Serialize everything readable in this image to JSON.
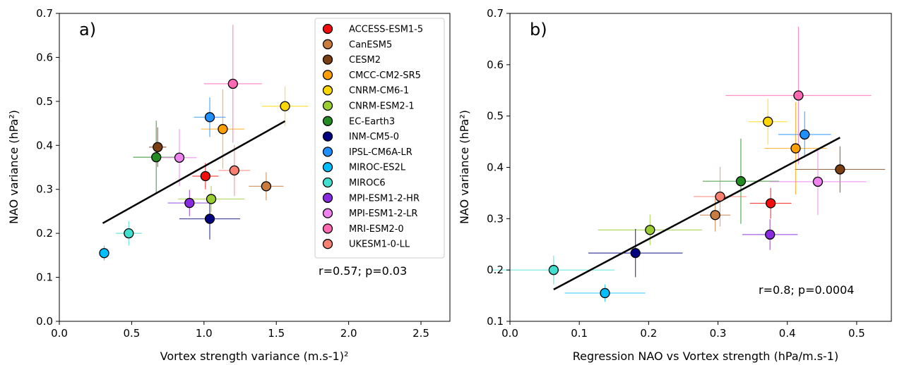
{
  "models": [
    {
      "name": "ACCESS-ESM1-5",
      "color": "#f30e0e"
    },
    {
      "name": "CanESM5",
      "color": "#c87c3e"
    },
    {
      "name": "CESM2",
      "color": "#7a3f12"
    },
    {
      "name": "CMCC-CM2-SR5",
      "color": "#ffa000"
    },
    {
      "name": "CNRM-CM6-1",
      "color": "#ffd700"
    },
    {
      "name": "CNRM-ESM2-1",
      "color": "#9acd32"
    },
    {
      "name": "EC-Earth3",
      "color": "#228b22"
    },
    {
      "name": "INM-CM5-0",
      "color": "#000080"
    },
    {
      "name": "IPSL-CM6A-LR",
      "color": "#1e90ff"
    },
    {
      "name": "MIROC-ES2L",
      "color": "#00bfff"
    },
    {
      "name": "MIROC6",
      "color": "#40e0d0"
    },
    {
      "name": "MPI-ESM1-2-HR",
      "color": "#8a2be2"
    },
    {
      "name": "MPI-ESM1-2-LR",
      "color": "#ee82ee"
    },
    {
      "name": "MRI-ESM2-0",
      "color": "#ff69b4"
    },
    {
      "name": "UKESM1-0-LL",
      "color": "#fa8072"
    }
  ],
  "chart_data": [
    {
      "type": "scatter",
      "panel_label": "a)",
      "title": "",
      "xlabel": "Vortex strength variance (m.s-1)²",
      "ylabel": "NAO variance (hPa²)",
      "xlim": [
        0.0,
        2.7
      ],
      "ylim": [
        0.0,
        0.7
      ],
      "xticks": [
        "0.0",
        "0.5",
        "1.0",
        "1.5",
        "2.0",
        "2.5"
      ],
      "yticks": [
        "0.0",
        "0.1",
        "0.2",
        "0.3",
        "0.4",
        "0.5",
        "0.6",
        "0.7"
      ],
      "grid": false,
      "legend": "top-right",
      "annotation": "r=0.57; p=0.03",
      "regression_line": {
        "x": [
          0.3,
          1.56
        ],
        "y": [
          0.223,
          0.455
        ]
      },
      "points": [
        {
          "model": "ACCESS-ESM1-5",
          "x": 1.01,
          "y": 0.33,
          "xerr": 0.09,
          "yerr": 0.03
        },
        {
          "model": "CanESM5",
          "x": 1.43,
          "y": 0.307,
          "xerr": 0.12,
          "yerr": 0.032
        },
        {
          "model": "CESM2",
          "x": 0.68,
          "y": 0.396,
          "xerr": 0.06,
          "yerr": 0.045
        },
        {
          "model": "CMCC-CM2-SR5",
          "x": 1.13,
          "y": 0.437,
          "xerr": 0.15,
          "yerr": 0.09
        },
        {
          "model": "CNRM-CM6-1",
          "x": 1.56,
          "y": 0.489,
          "xerr": 0.16,
          "yerr": 0.045
        },
        {
          "model": "CNRM-ESM2-1",
          "x": 1.05,
          "y": 0.278,
          "xerr": 0.23,
          "yerr": 0.03
        },
        {
          "model": "EC-Earth3",
          "x": 0.67,
          "y": 0.373,
          "xerr": 0.16,
          "yerr": 0.083
        },
        {
          "model": "INM-CM5-0",
          "x": 1.04,
          "y": 0.233,
          "xerr": 0.21,
          "yerr": 0.047
        },
        {
          "model": "IPSL-CM6A-LR",
          "x": 1.04,
          "y": 0.464,
          "xerr": 0.11,
          "yerr": 0.045
        },
        {
          "model": "MIROC-ES2L",
          "x": 0.31,
          "y": 0.155,
          "xerr": 0.03,
          "yerr": 0.017
        },
        {
          "model": "MIROC6",
          "x": 0.48,
          "y": 0.2,
          "xerr": 0.09,
          "yerr": 0.028
        },
        {
          "model": "MPI-ESM1-2-HR",
          "x": 0.9,
          "y": 0.269,
          "xerr": 0.15,
          "yerr": 0.03
        },
        {
          "model": "MPI-ESM1-2-LR",
          "x": 0.83,
          "y": 0.372,
          "xerr": 0.12,
          "yerr": 0.065
        },
        {
          "model": "MRI-ESM2-0",
          "x": 1.2,
          "y": 0.54,
          "xerr": 0.2,
          "yerr": 0.134
        },
        {
          "model": "UKESM1-0-LL",
          "x": 1.21,
          "y": 0.343,
          "xerr": 0.11,
          "yerr": 0.058
        }
      ]
    },
    {
      "type": "scatter",
      "panel_label": "b)",
      "title": "",
      "xlabel": "Regression NAO vs Vortex strength (hPa/m.s-1)",
      "ylabel": "NAO variance (hPa²)",
      "xlim": [
        0.0,
        0.55
      ],
      "ylim": [
        0.1,
        0.7
      ],
      "xticks": [
        "0.0",
        "0.1",
        "0.2",
        "0.3",
        "0.4",
        "0.5"
      ],
      "yticks": [
        "0.1",
        "0.2",
        "0.3",
        "0.4",
        "0.5",
        "0.6",
        "0.7"
      ],
      "grid": false,
      "legend": "none",
      "annotation": "r=0.8; p=0.0004",
      "regression_line": {
        "x": [
          0.063,
          0.476
        ],
        "y": [
          0.162,
          0.458
        ]
      },
      "points": [
        {
          "model": "ACCESS-ESM1-5",
          "x": 0.376,
          "y": 0.33,
          "xerr": 0.03,
          "yerr": 0.03
        },
        {
          "model": "CanESM5",
          "x": 0.296,
          "y": 0.307,
          "xerr": 0.022,
          "yerr": 0.032
        },
        {
          "model": "CESM2",
          "x": 0.476,
          "y": 0.396,
          "xerr": 0.065,
          "yerr": 0.045
        },
        {
          "model": "CMCC-CM2-SR5",
          "x": 0.412,
          "y": 0.437,
          "xerr": 0.045,
          "yerr": 0.09
        },
        {
          "model": "CNRM-CM6-1",
          "x": 0.372,
          "y": 0.489,
          "xerr": 0.028,
          "yerr": 0.045
        },
        {
          "model": "CNRM-ESM2-1",
          "x": 0.202,
          "y": 0.278,
          "xerr": 0.075,
          "yerr": 0.03
        },
        {
          "model": "EC-Earth3",
          "x": 0.333,
          "y": 0.373,
          "xerr": 0.055,
          "yerr": 0.083
        },
        {
          "model": "INM-CM5-0",
          "x": 0.181,
          "y": 0.233,
          "xerr": 0.068,
          "yerr": 0.047
        },
        {
          "model": "IPSL-CM6A-LR",
          "x": 0.425,
          "y": 0.464,
          "xerr": 0.038,
          "yerr": 0.045
        },
        {
          "model": "MIROC-ES2L",
          "x": 0.137,
          "y": 0.155,
          "xerr": 0.058,
          "yerr": 0.017
        },
        {
          "model": "MIROC6",
          "x": 0.063,
          "y": 0.2,
          "xerr": 0.088,
          "yerr": 0.028
        },
        {
          "model": "MPI-ESM1-2-HR",
          "x": 0.375,
          "y": 0.269,
          "xerr": 0.04,
          "yerr": 0.03
        },
        {
          "model": "MPI-ESM1-2-LR",
          "x": 0.444,
          "y": 0.372,
          "xerr": 0.07,
          "yerr": 0.065
        },
        {
          "model": "MRI-ESM2-0",
          "x": 0.416,
          "y": 0.54,
          "xerr": 0.105,
          "yerr": 0.134
        },
        {
          "model": "UKESM1-0-LL",
          "x": 0.303,
          "y": 0.343,
          "xerr": 0.038,
          "yerr": 0.058
        }
      ]
    }
  ]
}
